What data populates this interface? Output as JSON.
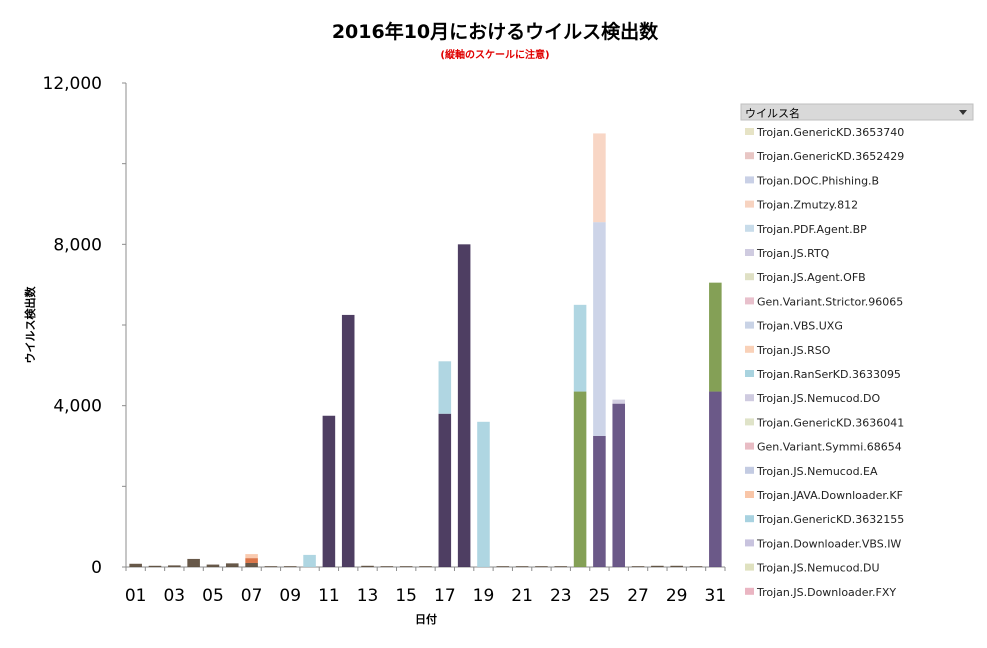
{
  "chart_data": {
    "type": "bar",
    "stacked": true,
    "title": "2016年10月におけるウイルス検出数",
    "subtitle": "(縦軸のスケールに注意)",
    "xlabel": "日付",
    "ylabel": "ウイルス検出数",
    "ylim": [
      0,
      12000
    ],
    "y_ticks": [
      "0",
      "4,000",
      "8,000",
      "12,000"
    ],
    "y_tick_values": [
      0,
      4000,
      8000,
      12000
    ],
    "x_tick_labels": [
      "01",
      "03",
      "05",
      "07",
      "09",
      "11",
      "13",
      "15",
      "17",
      "19",
      "21",
      "23",
      "25",
      "27",
      "29",
      "31"
    ],
    "categories": [
      "01",
      "02",
      "03",
      "04",
      "05",
      "06",
      "07",
      "08",
      "09",
      "10",
      "11",
      "12",
      "13",
      "14",
      "15",
      "16",
      "17",
      "18",
      "19",
      "20",
      "21",
      "22",
      "23",
      "24",
      "25",
      "26",
      "27",
      "28",
      "29",
      "30",
      "31"
    ],
    "legend_position": "right",
    "legend_header": "ウイルス名",
    "legend_dropdown_icon": "dropdown-triangle-icon",
    "series": [
      {
        "name": "Trojan.GenericKD.3653740",
        "color": "#e6e3c5",
        "values": [
          0,
          0,
          0,
          0,
          0,
          0,
          0,
          0,
          0,
          0,
          0,
          0,
          0,
          0,
          0,
          0,
          0,
          0,
          0,
          0,
          0,
          0,
          0,
          0,
          0,
          0,
          0,
          0,
          0,
          0,
          0
        ]
      },
      {
        "name": "Trojan.GenericKD.3652429",
        "color": "#e8c6c4",
        "values": [
          0,
          0,
          0,
          0,
          0,
          0,
          0,
          0,
          0,
          0,
          0,
          0,
          0,
          0,
          0,
          0,
          0,
          0,
          0,
          0,
          0,
          0,
          0,
          0,
          0,
          0,
          0,
          0,
          0,
          0,
          0
        ]
      },
      {
        "name": "Trojan.DOC.Phishing.B",
        "color": "#c9d0e6",
        "values": [
          0,
          0,
          0,
          0,
          0,
          0,
          0,
          0,
          0,
          0,
          0,
          0,
          0,
          0,
          0,
          0,
          0,
          0,
          0,
          0,
          0,
          0,
          0,
          0,
          5300,
          0,
          0,
          0,
          0,
          0,
          0
        ]
      },
      {
        "name": "Trojan.Zmutzy.812",
        "color": "#f7d3c0",
        "values": [
          0,
          0,
          0,
          0,
          0,
          0,
          0,
          0,
          0,
          0,
          0,
          0,
          0,
          0,
          0,
          0,
          0,
          0,
          0,
          0,
          0,
          0,
          0,
          0,
          2200,
          0,
          0,
          0,
          0,
          0,
          0
        ]
      },
      {
        "name": "Trojan.PDF.Agent.BP",
        "color": "#c8dcea",
        "values": [
          0,
          0,
          0,
          0,
          0,
          0,
          0,
          0,
          0,
          0,
          0,
          0,
          0,
          0,
          0,
          0,
          0,
          0,
          0,
          0,
          0,
          0,
          0,
          0,
          0,
          0,
          0,
          0,
          0,
          0,
          0
        ]
      },
      {
        "name": "Trojan.JS.RTQ",
        "color": "#cfcbe0",
        "values": [
          0,
          0,
          0,
          0,
          0,
          0,
          0,
          0,
          0,
          0,
          0,
          0,
          0,
          0,
          0,
          0,
          0,
          0,
          0,
          0,
          0,
          0,
          0,
          0,
          0,
          100,
          0,
          0,
          0,
          0,
          0
        ]
      },
      {
        "name": "Trojan.JS.Agent.OFB",
        "color": "#dfe0c4",
        "values": [
          0,
          0,
          0,
          0,
          0,
          0,
          0,
          0,
          0,
          0,
          0,
          0,
          0,
          0,
          0,
          0,
          0,
          0,
          0,
          0,
          0,
          0,
          0,
          0,
          0,
          0,
          0,
          0,
          0,
          0,
          0
        ]
      },
      {
        "name": "Gen.Variant.Strictor.96065",
        "color": "#e8c0cc",
        "values": [
          0,
          0,
          0,
          0,
          0,
          0,
          0,
          0,
          0,
          0,
          0,
          0,
          0,
          0,
          0,
          0,
          0,
          0,
          0,
          0,
          0,
          0,
          0,
          0,
          0,
          0,
          0,
          0,
          0,
          0,
          0
        ]
      },
      {
        "name": "Trojan.VBS.UXG",
        "color": "#c9d3e6",
        "values": [
          0,
          0,
          0,
          0,
          0,
          0,
          0,
          0,
          0,
          0,
          0,
          0,
          0,
          0,
          0,
          0,
          0,
          0,
          0,
          0,
          0,
          0,
          0,
          0,
          0,
          0,
          0,
          0,
          0,
          0,
          0
        ]
      },
      {
        "name": "Trojan.JS.RSO",
        "color": "#f9d1b8",
        "values": [
          0,
          0,
          0,
          0,
          0,
          0,
          0,
          0,
          0,
          0,
          0,
          0,
          0,
          0,
          0,
          0,
          0,
          0,
          0,
          0,
          0,
          0,
          0,
          0,
          0,
          0,
          0,
          0,
          0,
          0,
          0
        ]
      },
      {
        "name": "Trojan.RanSerKD.3633095",
        "color": "#a9d3df",
        "values": [
          0,
          0,
          0,
          0,
          0,
          0,
          0,
          0,
          0,
          0,
          0,
          0,
          0,
          0,
          0,
          0,
          1300,
          0,
          0,
          0,
          0,
          0,
          0,
          2150,
          0,
          0,
          0,
          0,
          0,
          0,
          0
        ]
      },
      {
        "name": "Trojan.JS.Nemucod.DO",
        "color": "#cfcbe0",
        "values": [
          0,
          0,
          0,
          0,
          0,
          0,
          0,
          0,
          0,
          0,
          0,
          0,
          0,
          0,
          0,
          0,
          0,
          0,
          0,
          0,
          0,
          0,
          0,
          0,
          0,
          0,
          0,
          0,
          0,
          0,
          0
        ]
      },
      {
        "name": "Trojan.GenericKD.3636041",
        "color": "#dfe3c8",
        "values": [
          0,
          0,
          0,
          0,
          0,
          0,
          0,
          0,
          0,
          0,
          0,
          0,
          0,
          0,
          0,
          0,
          0,
          0,
          0,
          0,
          0,
          0,
          0,
          0,
          0,
          0,
          0,
          0,
          0,
          0,
          0
        ]
      },
      {
        "name": "Gen.Variant.Symmi.68654",
        "color": "#e8bcc4",
        "values": [
          0,
          0,
          0,
          0,
          0,
          0,
          0,
          0,
          0,
          0,
          0,
          0,
          0,
          0,
          0,
          0,
          0,
          0,
          0,
          0,
          0,
          0,
          0,
          0,
          0,
          0,
          0,
          0,
          0,
          0,
          0
        ]
      },
      {
        "name": "Trojan.JS.Nemucod.EA",
        "color": "#c3cbe2",
        "values": [
          0,
          0,
          0,
          0,
          0,
          0,
          0,
          0,
          0,
          0,
          0,
          0,
          0,
          0,
          0,
          0,
          0,
          0,
          0,
          0,
          0,
          0,
          0,
          0,
          0,
          0,
          0,
          0,
          0,
          0,
          0
        ]
      },
      {
        "name": "Trojan.JAVA.Downloader.KF",
        "color": "#f9c6a8",
        "values": [
          0,
          0,
          0,
          0,
          0,
          0,
          100,
          0,
          0,
          0,
          0,
          0,
          0,
          0,
          0,
          0,
          0,
          0,
          0,
          0,
          0,
          0,
          0,
          0,
          0,
          0,
          0,
          0,
          0,
          0,
          0
        ]
      },
      {
        "name": "Trojan.GenericKD.3632155",
        "color": "#a8d2e0",
        "values": [
          0,
          0,
          0,
          0,
          0,
          0,
          0,
          0,
          0,
          300,
          0,
          0,
          0,
          0,
          0,
          0,
          0,
          0,
          3600,
          0,
          0,
          0,
          0,
          0,
          0,
          0,
          0,
          0,
          0,
          0,
          0
        ]
      },
      {
        "name": "Trojan.Downloader.VBS.IW",
        "color": "#c8c3de",
        "values": [
          0,
          0,
          0,
          0,
          0,
          0,
          0,
          0,
          0,
          0,
          0,
          0,
          0,
          0,
          0,
          0,
          0,
          0,
          0,
          0,
          0,
          0,
          0,
          0,
          0,
          0,
          0,
          0,
          0,
          0,
          0
        ]
      },
      {
        "name": "Trojan.JS.Nemucod.DU",
        "color": "#dfe1bf",
        "values": [
          0,
          0,
          0,
          0,
          0,
          0,
          0,
          0,
          0,
          0,
          0,
          0,
          0,
          0,
          0,
          0,
          0,
          0,
          0,
          0,
          0,
          0,
          0,
          0,
          0,
          0,
          0,
          0,
          0,
          0,
          0
        ]
      },
      {
        "name": "Trojan.JS.Downloader.FXY",
        "color": "#eab5c2",
        "values": [
          0,
          0,
          0,
          0,
          0,
          0,
          0,
          0,
          0,
          0,
          0,
          0,
          0,
          0,
          0,
          0,
          0,
          0,
          0,
          0,
          0,
          0,
          0,
          0,
          0,
          0,
          0,
          0,
          0,
          0,
          0
        ]
      }
    ],
    "other_series": [
      {
        "color": "#3f2e55",
        "values": [
          0,
          0,
          0,
          0,
          0,
          0,
          0,
          0,
          0,
          0,
          3750,
          6250,
          0,
          0,
          0,
          0,
          3800,
          8000,
          0,
          0,
          0,
          0,
          0,
          0,
          0,
          0,
          0,
          0,
          0,
          0,
          0
        ]
      },
      {
        "color": "#5e4b7e",
        "values": [
          0,
          0,
          0,
          0,
          0,
          0,
          0,
          0,
          0,
          0,
          0,
          0,
          0,
          0,
          0,
          0,
          0,
          0,
          0,
          0,
          0,
          0,
          0,
          0,
          3250,
          4050,
          0,
          0,
          0,
          0,
          4350
        ]
      },
      {
        "color": "#7a9848",
        "values": [
          0,
          0,
          0,
          0,
          0,
          0,
          0,
          0,
          0,
          0,
          0,
          0,
          0,
          0,
          0,
          0,
          0,
          0,
          0,
          0,
          0,
          0,
          0,
          4350,
          0,
          0,
          0,
          0,
          0,
          0,
          2700
        ]
      },
      {
        "color": "#5a4a3a",
        "values": [
          80,
          30,
          40,
          200,
          60,
          90,
          100,
          20,
          20,
          0,
          0,
          0,
          30,
          20,
          20,
          20,
          0,
          0,
          0,
          20,
          20,
          20,
          20,
          0,
          0,
          0,
          20,
          30,
          30,
          20,
          0
        ]
      },
      {
        "color": "#d96a3a",
        "values": [
          0,
          0,
          0,
          0,
          0,
          0,
          120,
          0,
          0,
          0,
          0,
          0,
          0,
          0,
          0,
          0,
          0,
          0,
          0,
          0,
          0,
          0,
          0,
          0,
          0,
          0,
          0,
          0,
          0,
          0,
          0
        ]
      },
      {
        "color": "#b9a9a0",
        "values": [
          0,
          0,
          0,
          0,
          0,
          0,
          0,
          0,
          0,
          0,
          0,
          0,
          0,
          0,
          0,
          0,
          0,
          0,
          0,
          0,
          0,
          0,
          0,
          0,
          0,
          0,
          0,
          0,
          0,
          0,
          0
        ]
      }
    ]
  }
}
